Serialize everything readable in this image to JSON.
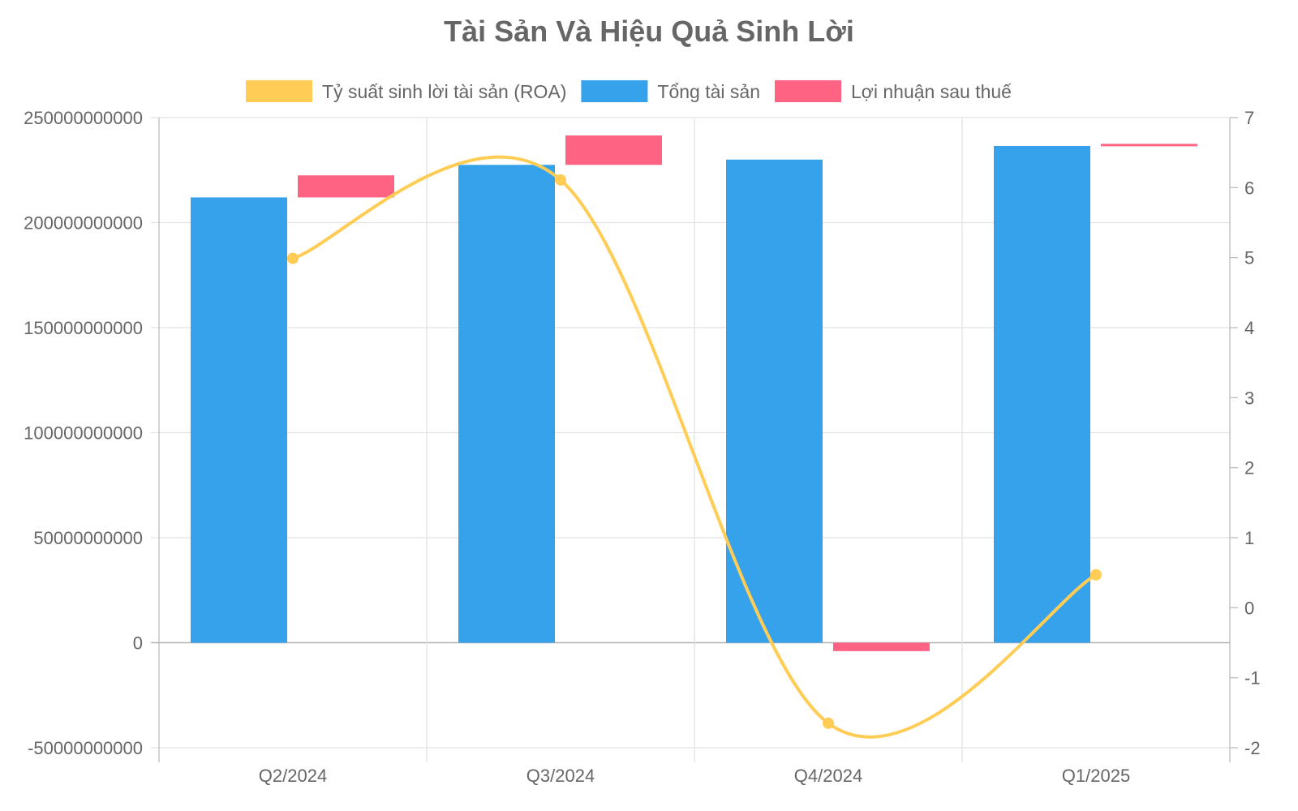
{
  "chart_data": {
    "type": "bar",
    "title": "Tài Sản Và Hiệu Quả Sinh Lời",
    "categories": [
      "Q2/2024",
      "Q3/2024",
      "Q4/2024",
      "Q1/2025"
    ],
    "series": [
      {
        "name": "Tỷ suất sinh lời tài sản (ROA)",
        "type": "line",
        "axis": "right",
        "color": "#FFCD56",
        "values": [
          4.99,
          6.11,
          -1.65,
          0.47
        ]
      },
      {
        "name": "Tổng tài sản",
        "type": "bar",
        "axis": "left",
        "color": "#36A2EB",
        "values": [
          212000000000,
          227500000000,
          230000000000,
          236500000000
        ]
      },
      {
        "name": "Lợi nhuận sau thuế",
        "type": "floating-bar",
        "axis": "left",
        "color": "#FF6384",
        "ranges": [
          [
            212000000000,
            222500000000
          ],
          [
            227500000000,
            241500000000
          ],
          [
            -4000000000,
            0
          ],
          [
            236500000000,
            237500000000
          ]
        ]
      }
    ],
    "y_left": {
      "min": -50000000000,
      "max": 250000000000,
      "ticks": [
        "250000000000",
        "200000000000",
        "150000000000",
        "100000000000",
        "50000000000",
        "0",
        "-50000000000"
      ]
    },
    "y_right": {
      "min": -2,
      "max": 7,
      "ticks": [
        "7",
        "6",
        "5",
        "4",
        "3",
        "2",
        "1",
        "0",
        "-1",
        "-2"
      ]
    },
    "legend_position": "top",
    "grid": true
  }
}
